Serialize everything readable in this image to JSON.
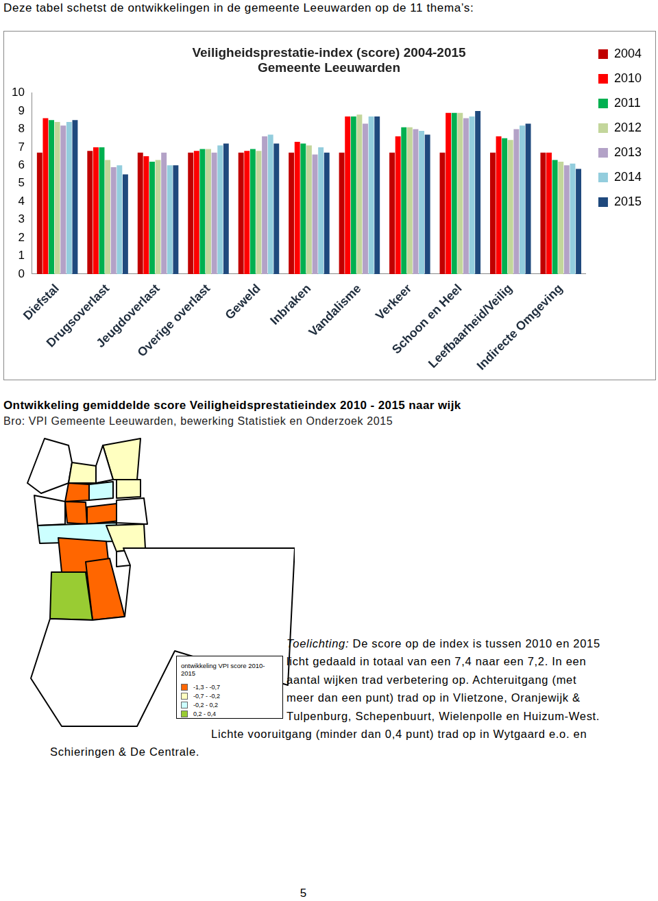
{
  "header": {
    "text": "Deze tabel schetst de ontwikkelingen in de gemeente Leeuwarden op de 11 thema’s:"
  },
  "chart_data": {
    "type": "bar",
    "title": [
      "Veiligheidsprestatie-index (score) 2004-2015",
      "Gemeente Leeuwarden"
    ],
    "categories": [
      "Diefstal",
      "Drugsoverlast",
      "Jeugdoverlast",
      "Overige overlast",
      "Geweld",
      "Inbraken",
      "Vandalisme",
      "Verkeer",
      "Schoon en Heel",
      "Leefbaarheid/Veilig",
      "Indirecte Omgeving"
    ],
    "series": [
      {
        "name": "2004",
        "color": "#c00000",
        "values": [
          6.7,
          6.8,
          6.7,
          6.7,
          6.7,
          6.7,
          6.7,
          6.7,
          6.7,
          6.7,
          6.7
        ]
      },
      {
        "name": "2010",
        "color": "#ff0000",
        "values": [
          8.6,
          7.0,
          6.5,
          6.8,
          6.8,
          7.3,
          8.7,
          7.6,
          8.9,
          7.6,
          6.7
        ]
      },
      {
        "name": "2011",
        "color": "#00b050",
        "values": [
          8.5,
          7.0,
          6.2,
          6.9,
          6.9,
          7.2,
          8.7,
          8.1,
          8.9,
          7.5,
          6.3
        ]
      },
      {
        "name": "2012",
        "color": "#c3d69b",
        "values": [
          8.4,
          6.3,
          6.3,
          6.9,
          6.8,
          7.1,
          8.8,
          8.1,
          8.9,
          7.4,
          6.2
        ]
      },
      {
        "name": "2013",
        "color": "#b3a2c7",
        "values": [
          8.2,
          5.9,
          6.7,
          6.7,
          7.6,
          6.6,
          8.3,
          8.0,
          8.6,
          8.0,
          6.0
        ]
      },
      {
        "name": "2014",
        "color": "#93cddd",
        "values": [
          8.4,
          6.0,
          6.0,
          7.1,
          7.7,
          7.0,
          8.7,
          7.9,
          8.7,
          8.2,
          6.1
        ]
      },
      {
        "name": "2015",
        "color": "#1f497d",
        "values": [
          8.5,
          5.5,
          6.0,
          7.2,
          7.2,
          6.7,
          8.7,
          7.7,
          9.0,
          8.3,
          5.8
        ]
      }
    ],
    "ylim": [
      0,
      10
    ],
    "yticks": [
      0,
      1,
      2,
      3,
      4,
      5,
      6,
      7,
      8,
      9,
      10
    ],
    "grid": false,
    "legend": "right"
  },
  "map": {
    "title": "Ontwikkeling gemiddelde score Veiligheidsprestatieindex 2010 - 2015 naar wijk",
    "source": "Bro: VPI Gemeente Leeuwarden, bewerking Statistiek en Onderzoek 2015",
    "legend": {
      "title": "ontwikkeling VPI score 2010-2015",
      "classes": [
        {
          "label": "-1,3 - -0,7",
          "color": "#ff6600"
        },
        {
          "label": "-0,7 - -0,2",
          "color": "#ffffc0"
        },
        {
          "label": "-0,2 - 0,2",
          "color": "#ccffff"
        },
        {
          "label": "0,2 - 0,4",
          "color": "#99cc33"
        }
      ]
    },
    "regions": [
      null,
      "-0,7 - -0,2",
      "-0,7 - -0,2",
      null,
      "-1,3 - -0,7",
      "-0,2 - 0,2",
      "-0,7 - -0,2",
      null,
      "-1,3 - -0,7",
      "-1,3 - -0,7",
      "-0,2 - 0,2",
      "-0,7 - -0,2",
      null,
      "-1,3 - -0,7",
      "-1,3 - -0,7",
      "0,2 - 0,4",
      null,
      null
    ]
  },
  "note": {
    "label": "Toelichting:",
    "text": "De score op de index is tussen 2010 en 2015 licht gedaald in totaal van een 7,4 naar een 7,2. In een aantal wijken trad verbetering op. Achteruitgang (met meer dan een punt) trad op in Vlietzone, Oranjewijk & Tulpenburg, Schepenbuurt, Wielenpolle en Huizum-West. Lichte vooruitgang (minder dan 0,4 punt) trad op in Wytgaard e.o. en Schieringen & De Centrale."
  },
  "page_number": 5
}
